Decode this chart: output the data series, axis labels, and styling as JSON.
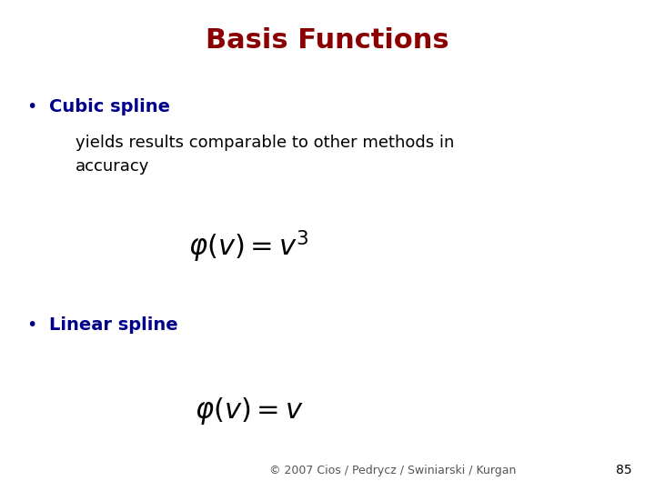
{
  "title": "Basis Functions",
  "title_color": "#8B0000",
  "title_fontsize": 22,
  "title_fontweight": "bold",
  "background_color": "#FFFFFF",
  "bullet1_label": "Cubic spline",
  "bullet1_color": "#00008B",
  "bullet1_fontsize": 14,
  "bullet1_fontweight": "bold",
  "bullet1_sub": "yields results comparable to other methods in\naccuracy",
  "bullet1_sub_color": "#000000",
  "bullet1_sub_fontsize": 13,
  "formula1": "$\\varphi(v)=v^3$",
  "formula1_fontsize": 22,
  "formula1_color": "#000000",
  "bullet2_label": "Linear spline",
  "bullet2_color": "#00008B",
  "bullet2_fontsize": 14,
  "bullet2_fontweight": "bold",
  "formula2": "$\\varphi(v)=v$",
  "formula2_fontsize": 22,
  "formula2_color": "#000000",
  "footer": "© 2007 Cios / Pedrycz / Swiniarski / Kurgan",
  "footer_color": "#555555",
  "footer_fontsize": 9,
  "page_number": "85",
  "page_number_color": "#000000",
  "page_number_fontsize": 10
}
